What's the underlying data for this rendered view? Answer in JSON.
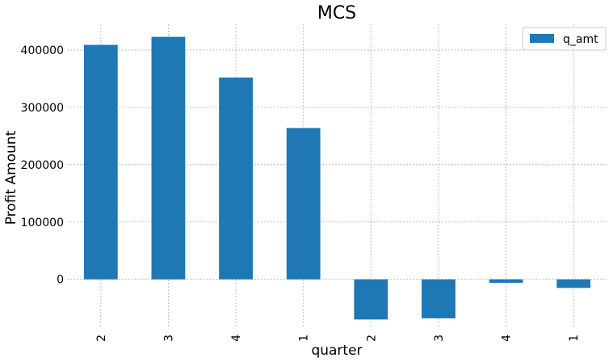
{
  "chart_data": {
    "type": "bar",
    "title": "MCS",
    "xlabel": "quarter",
    "ylabel": "Profit Amount",
    "categories": [
      "2",
      "3",
      "4",
      "1",
      "2",
      "3",
      "4",
      "1"
    ],
    "series": [
      {
        "name": "q_amt",
        "color": "#1f77b4",
        "values": [
          409000,
          423000,
          352000,
          264000,
          -70000,
          -68000,
          -6000,
          -15000
        ]
      }
    ],
    "yticks": [
      0,
      100000,
      200000,
      300000,
      400000
    ],
    "ylim": [
      -85000,
      445000
    ],
    "grid": true,
    "legend_position": "top-right"
  }
}
